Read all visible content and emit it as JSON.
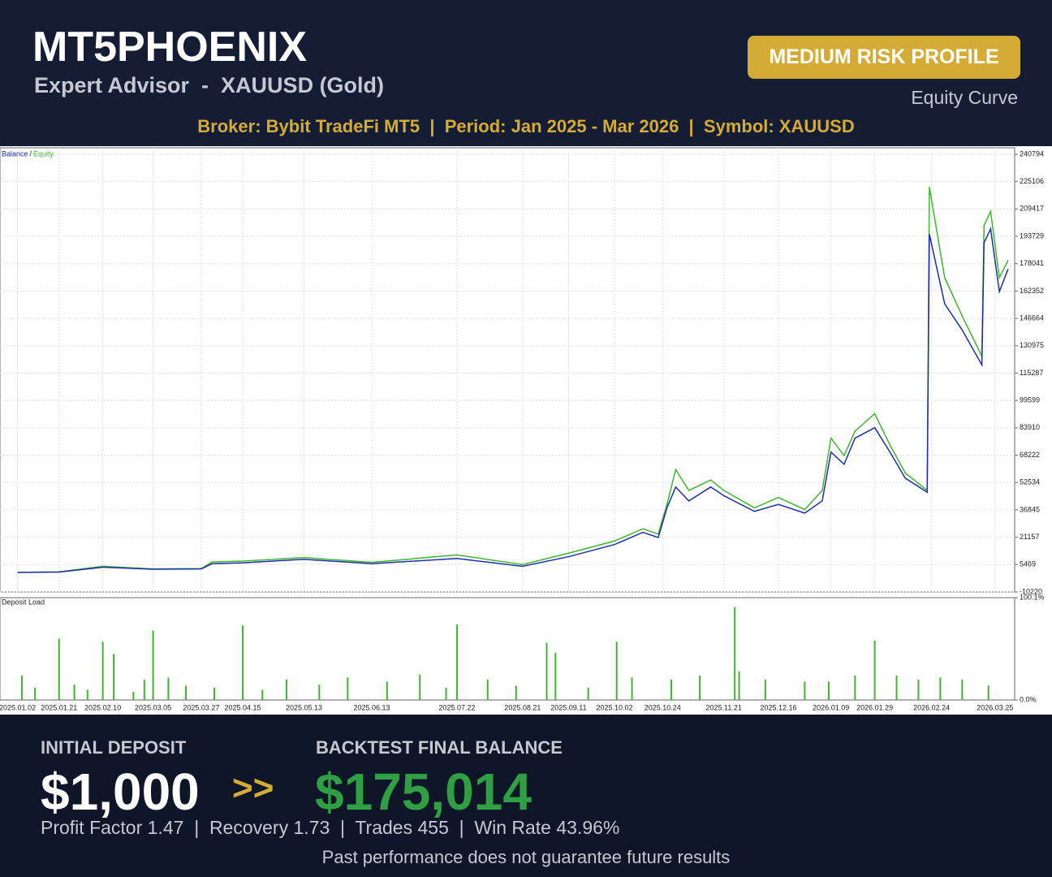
{
  "header": {
    "title": "MT5PHOENIX",
    "subtitle": "Expert Advisor  -  XAUUSD (Gold)",
    "badge": "MEDIUM RISK PROFILE",
    "caption": "Equity Curve",
    "info": "Broker: Bybit TradeFi MT5  |  Period: Jan 2025 - Mar 2026  |  Symbol: XAUUSD"
  },
  "chart_data": [
    {
      "type": "line",
      "legend_separator": "/",
      "x": [
        "2025.01.02",
        "2025.01.21",
        "2025.02.10",
        "2025.03.05",
        "2025.03.27",
        "2025.04.01",
        "2025.04.15",
        "2025.05.13",
        "2025.06.13",
        "2025.07.22",
        "2025.08.21",
        "2025.09.11",
        "2025.10.02",
        "2025.10.15",
        "2025.10.22",
        "2025.10.26",
        "2025.10.30",
        "2025.11.05",
        "2025.11.15",
        "2025.11.21",
        "2025.12.05",
        "2025.12.16",
        "2025.12.28",
        "2026.01.05",
        "2026.01.09",
        "2026.01.15",
        "2026.01.20",
        "2026.01.29",
        "2026.02.05",
        "2026.02.12",
        "2026.02.22",
        "2026.02.23",
        "2026.03.02",
        "2026.03.10",
        "2026.03.19",
        "2026.03.20",
        "2026.03.23",
        "2026.03.27",
        "2026.03.31"
      ],
      "series": [
        {
          "name": "Balance",
          "color": "#1c2fa8",
          "values": [
            1000,
            1200,
            4000,
            2800,
            3000,
            6000,
            6500,
            8500,
            6000,
            9000,
            4500,
            10000,
            17000,
            24000,
            21000,
            38000,
            50000,
            42000,
            50000,
            45000,
            36000,
            40000,
            35000,
            42000,
            70000,
            63000,
            78000,
            84000,
            70000,
            55000,
            47000,
            195000,
            155000,
            140000,
            120000,
            190000,
            198000,
            162000,
            175014
          ]
        },
        {
          "name": "Equity",
          "color": "#3fb52e",
          "values": [
            1000,
            1300,
            4500,
            3000,
            3200,
            7000,
            7500,
            9500,
            6800,
            11000,
            5500,
            12000,
            19000,
            26000,
            23000,
            40000,
            60000,
            48000,
            54000,
            48000,
            38000,
            44000,
            37000,
            48000,
            78000,
            68000,
            82000,
            92000,
            74000,
            58000,
            48000,
            222000,
            170000,
            148000,
            125000,
            200000,
            208000,
            170000,
            180000
          ]
        }
      ],
      "xlim": [
        "2024.12.25",
        "2026.04.03"
      ],
      "xticks": [
        "2025.01.02",
        "2025.01.21",
        "2025.02.10",
        "2025.03.05",
        "2025.03.27",
        "2025.04.15",
        "2025.05.13",
        "2025.06.13",
        "2025.07.22",
        "2025.08.21",
        "2025.09.11",
        "2025.10.02",
        "2025.10.24",
        "2025.11.21",
        "2025.12.16",
        "2026.01.09",
        "2026.01.29",
        "2026.02.24",
        "2026.03.25"
      ],
      "ylim": [
        -10220,
        244500
      ],
      "yticks": [
        240794,
        225106,
        209417,
        193729,
        178041,
        162352,
        146664,
        130975,
        115287,
        99599,
        83910,
        68222,
        52534,
        36845,
        21157,
        5469,
        -10220
      ],
      "grid": true
    },
    {
      "type": "bar",
      "title": "Deposit Load",
      "color": "#3fb52e",
      "x": [
        "2025.01.04",
        "2025.01.10",
        "2025.01.21",
        "2025.01.28",
        "2025.02.03",
        "2025.02.10",
        "2025.02.15",
        "2025.02.24",
        "2025.03.01",
        "2025.03.05",
        "2025.03.12",
        "2025.03.20",
        "2025.04.02",
        "2025.04.15",
        "2025.04.24",
        "2025.05.05",
        "2025.05.20",
        "2025.06.02",
        "2025.06.20",
        "2025.07.05",
        "2025.07.17",
        "2025.07.22",
        "2025.08.05",
        "2025.08.18",
        "2025.09.01",
        "2025.09.05",
        "2025.09.20",
        "2025.10.03",
        "2025.10.10",
        "2025.10.28",
        "2025.11.10",
        "2025.11.26",
        "2025.11.28",
        "2025.12.10",
        "2025.12.28",
        "2026.01.08",
        "2026.01.20",
        "2026.01.29",
        "2026.02.08",
        "2026.02.18",
        "2026.02.28",
        "2026.03.10",
        "2026.03.22"
      ],
      "values": [
        24,
        12,
        60,
        15,
        10,
        57,
        45,
        8,
        20,
        68,
        22,
        14,
        12,
        73,
        10,
        20,
        15,
        22,
        18,
        25,
        12,
        74,
        20,
        14,
        56,
        46,
        12,
        57,
        22,
        20,
        24,
        91,
        28,
        20,
        18,
        18,
        24,
        58,
        24,
        20,
        22,
        20,
        14
      ],
      "xlim": [
        "2024.12.25",
        "2026.04.03"
      ],
      "ylim": [
        0,
        100.1
      ],
      "yticks": [
        {
          "value": 100.1,
          "label": "100.1%"
        },
        {
          "value": 0,
          "label": "0.0%"
        }
      ]
    }
  ],
  "footer": {
    "initial_label": "INITIAL DEPOSIT",
    "initial_value": "$1,000",
    "arrow": ">>",
    "final_label": "BACKTEST FINAL BALANCE",
    "final_value": "$175,014",
    "stats": "Profit Factor 1.47  |  Recovery 1.73  |  Trades 455  |  Win Rate 43.96%",
    "disclaimer": "Past performance does not guarantee future results"
  }
}
